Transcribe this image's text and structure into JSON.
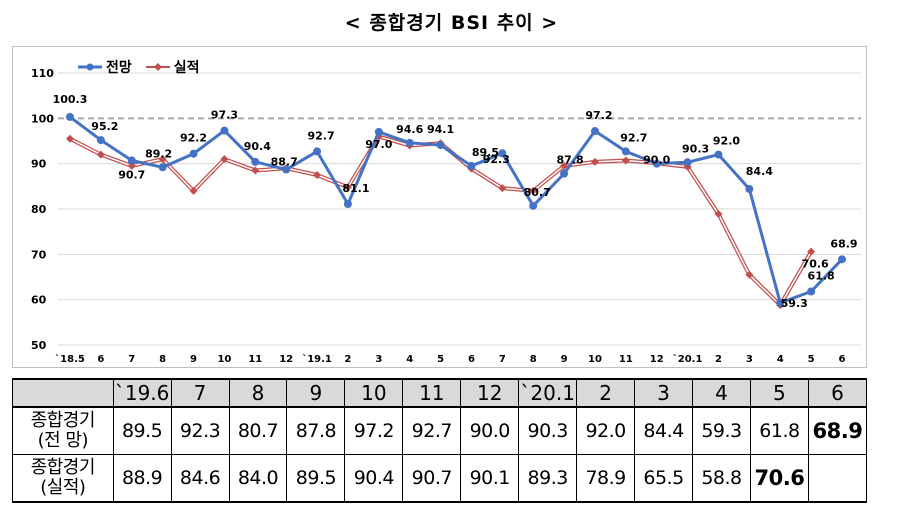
{
  "title": "< 종합경기 BSI 추이 >",
  "colors": {
    "forecast": "#4472c4",
    "actual": "#c0504d",
    "grid": "#d9d9d9",
    "reference": "#a6a6a6"
  },
  "chart_data": {
    "type": "line",
    "title": "< 종합경기 BSI 추이 >",
    "xlabel": "",
    "ylabel": "",
    "ylim": [
      50,
      110
    ],
    "yticks": [
      "50",
      "60",
      "70",
      "80",
      "90",
      "100",
      "110"
    ],
    "reference_line": 100,
    "legend": "top-left",
    "categories": [
      "`18.5",
      "6",
      "7",
      "8",
      "9",
      "10",
      "11",
      "12",
      "`19.1",
      "2",
      "3",
      "4",
      "5",
      "6",
      "7",
      "8",
      "9",
      "10",
      "11",
      "12",
      "`20.1",
      "2",
      "3",
      "4",
      "5",
      "6"
    ],
    "series": [
      {
        "name": "전망",
        "values": [
          100.3,
          95.2,
          90.7,
          89.2,
          92.2,
          97.3,
          90.4,
          88.7,
          92.7,
          81.1,
          97.0,
          94.6,
          94.1,
          89.5,
          92.3,
          80.7,
          87.8,
          97.2,
          92.7,
          90.0,
          90.3,
          92.0,
          84.4,
          59.3,
          61.8,
          68.9
        ],
        "labels": [
          "100.3",
          "95.2",
          "90.7",
          "89.2",
          "92.2",
          "97.3",
          "90.4",
          "88.7",
          "92.7",
          "81.1",
          "97.0",
          "94.6",
          "94.1",
          "89.5",
          "92.3",
          "80.7",
          "87.8",
          "97.2",
          "92.7",
          "90.0",
          "90.3",
          "92.0",
          "84.4",
          "59.3",
          "61.8",
          "68.9"
        ]
      },
      {
        "name": "실적",
        "values": [
          95.5,
          92.0,
          89.5,
          91.0,
          84.0,
          91.0,
          88.5,
          89.0,
          87.5,
          84.8,
          96.0,
          94.0,
          94.5,
          88.9,
          84.6,
          84.0,
          89.5,
          90.4,
          90.7,
          90.1,
          89.3,
          78.9,
          65.5,
          58.8,
          70.6,
          null
        ]
      }
    ]
  },
  "table": {
    "header": [
      "",
      "`19.6",
      "7",
      "8",
      "9",
      "10",
      "11",
      "12",
      "`20.1",
      "2",
      "3",
      "4",
      "5",
      "6"
    ],
    "rows": [
      {
        "label_line1": "종합경기",
        "label_line2": "(전 망)",
        "values": [
          "89.5",
          "92.3",
          "80.7",
          "87.8",
          "97.2",
          "92.7",
          "90.0",
          "90.3",
          "92.0",
          "84.4",
          "59.3",
          "61.8",
          "68.9"
        ]
      },
      {
        "label_line1": "종합경기",
        "label_line2": "(실적)",
        "values": [
          "88.9",
          "84.6",
          "84.0",
          "89.5",
          "90.4",
          "90.7",
          "90.1",
          "89.3",
          "78.9",
          "65.5",
          "58.8",
          "70.6",
          ""
        ]
      }
    ]
  }
}
